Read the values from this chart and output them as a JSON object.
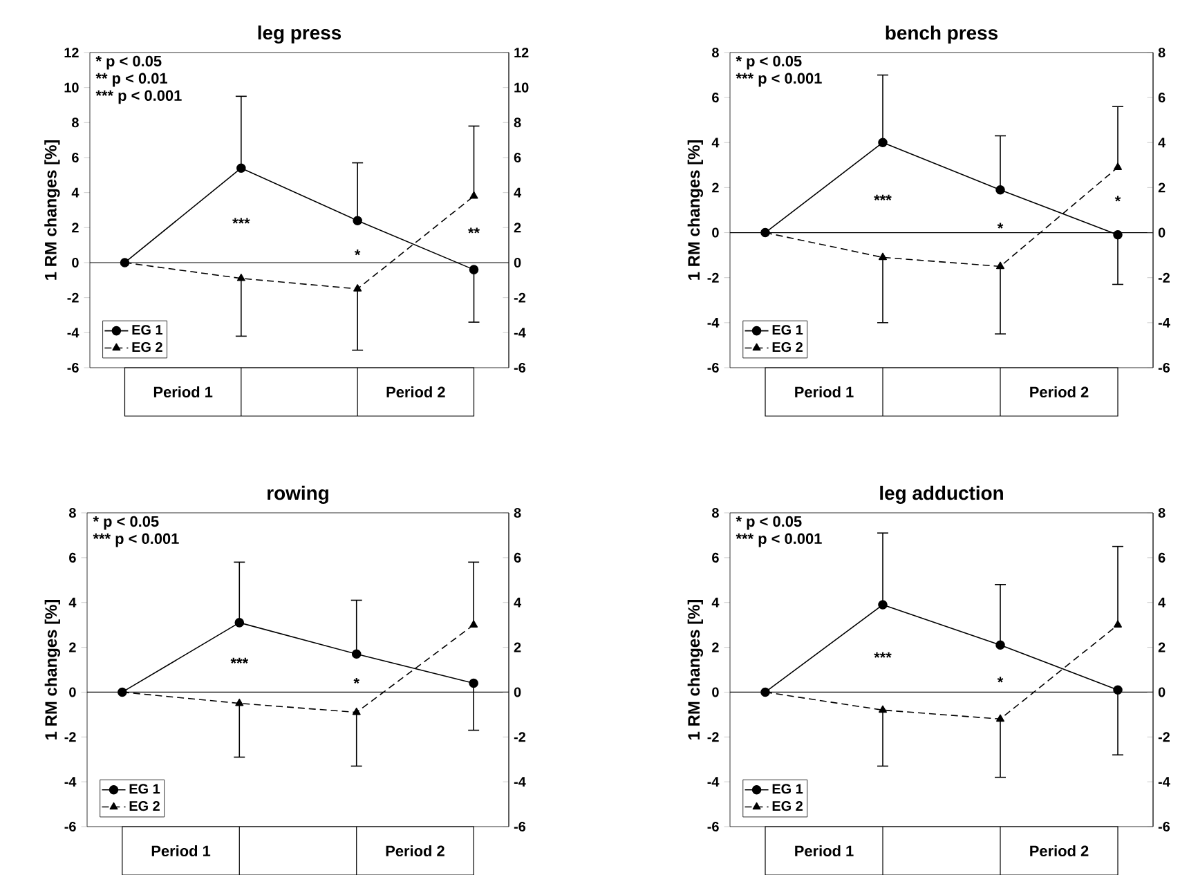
{
  "chart_data": [
    {
      "type": "line",
      "title": "leg press",
      "ylabel": "1 RM changes [%]",
      "categories": [
        null,
        null,
        null,
        null
      ],
      "ylim": [
        -6,
        12
      ],
      "yticks": [
        -6,
        -4,
        -2,
        0,
        2,
        4,
        6,
        8,
        10,
        12
      ],
      "y2lim": [
        -6,
        12
      ],
      "y2ticks": [
        -6,
        -4,
        -2,
        0,
        2,
        4,
        6,
        8,
        10,
        12
      ],
      "legend": "bottom left",
      "ref_lines": [
        {
          "axis": "y",
          "value": 0
        }
      ],
      "annotations": [
        "* p < 0.05",
        "** p < 0.01",
        "*** p < 0.001",
        "***",
        "*",
        "**",
        "Period 1",
        "Period 2"
      ],
      "series": [
        {
          "name": "EG 1",
          "color": "#000000",
          "marker": "circle",
          "line_style": "solid",
          "values": [
            0,
            5.4,
            2.4,
            -0.4
          ],
          "errors": [
            null,
            [
              5.4,
              9.5
            ],
            [
              2.4,
              5.7
            ],
            [
              -3.4,
              -0.4
            ]
          ]
        },
        {
          "name": "EG 2",
          "color": "#000000",
          "marker": "triangle",
          "line_style": "dashed",
          "values": [
            0,
            -0.9,
            -1.5,
            3.8
          ],
          "errors": [
            null,
            [
              -4.2,
              -0.9
            ],
            [
              -5.0,
              -1.5
            ],
            [
              3.8,
              7.8
            ]
          ]
        }
      ]
    },
    {
      "type": "line",
      "title": "bench press",
      "ylabel": "1 RM changes [%]",
      "categories": [
        null,
        null,
        null,
        null
      ],
      "ylim": [
        -6,
        8
      ],
      "yticks": [
        -6,
        -4,
        -2,
        0,
        2,
        4,
        6,
        8
      ],
      "y2lim": [
        -6,
        8
      ],
      "y2ticks": [
        -6,
        -4,
        -2,
        0,
        2,
        4,
        6,
        8
      ],
      "legend": "bottom left",
      "ref_lines": [
        {
          "axis": "y",
          "value": 0
        }
      ],
      "annotations": [
        "* p < 0.05",
        "*** p < 0.001",
        "***",
        "*",
        "*",
        "Period 1",
        "Period 2"
      ],
      "series": [
        {
          "name": "EG 1",
          "color": "#000000",
          "marker": "circle",
          "line_style": "solid",
          "values": [
            0,
            4.0,
            1.9,
            -0.1
          ],
          "errors": [
            null,
            [
              4.0,
              7.0
            ],
            [
              1.9,
              4.3
            ],
            [
              -2.3,
              -0.1
            ]
          ]
        },
        {
          "name": "EG 2",
          "color": "#000000",
          "marker": "triangle",
          "line_style": "dashed",
          "values": [
            0,
            -1.1,
            -1.5,
            2.9
          ],
          "errors": [
            null,
            [
              -4.0,
              -1.1
            ],
            [
              -4.5,
              -1.5
            ],
            [
              2.9,
              5.6
            ]
          ]
        }
      ]
    },
    {
      "type": "line",
      "title": "rowing",
      "ylabel": "1 RM changes [%]",
      "categories": [
        null,
        null,
        null,
        null
      ],
      "ylim": [
        -6,
        8
      ],
      "yticks": [
        -6,
        -4,
        -2,
        0,
        2,
        4,
        6,
        8
      ],
      "y2lim": [
        -6,
        8
      ],
      "y2ticks": [
        -6,
        -4,
        -2,
        0,
        2,
        4,
        6,
        8
      ],
      "legend": "bottom left",
      "ref_lines": [
        {
          "axis": "y",
          "value": 0
        }
      ],
      "annotations": [
        "* p < 0.05",
        "*** p < 0.001",
        "***",
        "*",
        "Period 1",
        "Period 2"
      ],
      "series": [
        {
          "name": "EG 1",
          "color": "#000000",
          "marker": "circle",
          "line_style": "solid",
          "values": [
            0,
            3.1,
            1.7,
            0.4
          ],
          "errors": [
            null,
            [
              3.1,
              5.8
            ],
            [
              1.7,
              4.1
            ],
            [
              -1.7,
              0.4
            ]
          ]
        },
        {
          "name": "EG 2",
          "color": "#000000",
          "marker": "triangle",
          "line_style": "dashed",
          "values": [
            0,
            -0.5,
            -0.9,
            3.0
          ],
          "errors": [
            null,
            [
              -2.9,
              -0.5
            ],
            [
              -3.3,
              -0.9
            ],
            [
              3.0,
              5.8
            ]
          ]
        }
      ]
    },
    {
      "type": "line",
      "title": "leg adduction",
      "ylabel": "1 RM changes [%]",
      "categories": [
        null,
        null,
        null,
        null
      ],
      "ylim": [
        -6,
        8
      ],
      "yticks": [
        -6,
        -4,
        -2,
        0,
        2,
        4,
        6,
        8
      ],
      "y2lim": [
        -6,
        8
      ],
      "y2ticks": [
        -6,
        -4,
        -2,
        0,
        2,
        4,
        6,
        8
      ],
      "legend": "bottom left",
      "ref_lines": [
        {
          "axis": "y",
          "value": 0
        }
      ],
      "annotations": [
        "* p < 0.05",
        "*** p < 0.001",
        "***",
        "*",
        "Period 1",
        "Period 2"
      ],
      "series": [
        {
          "name": "EG 1",
          "color": "#000000",
          "marker": "circle",
          "line_style": "solid",
          "values": [
            0,
            3.9,
            2.1,
            0.1
          ],
          "errors": [
            null,
            [
              3.9,
              7.1
            ],
            [
              2.1,
              4.8
            ],
            [
              -2.8,
              0.1
            ]
          ]
        },
        {
          "name": "EG 2",
          "color": "#000000",
          "marker": "triangle",
          "line_style": "dashed",
          "values": [
            0,
            -0.8,
            -1.2,
            3.0
          ],
          "errors": [
            null,
            [
              -3.3,
              -0.8
            ],
            [
              -3.8,
              -1.2
            ],
            [
              3.0,
              6.5
            ]
          ]
        }
      ]
    }
  ]
}
